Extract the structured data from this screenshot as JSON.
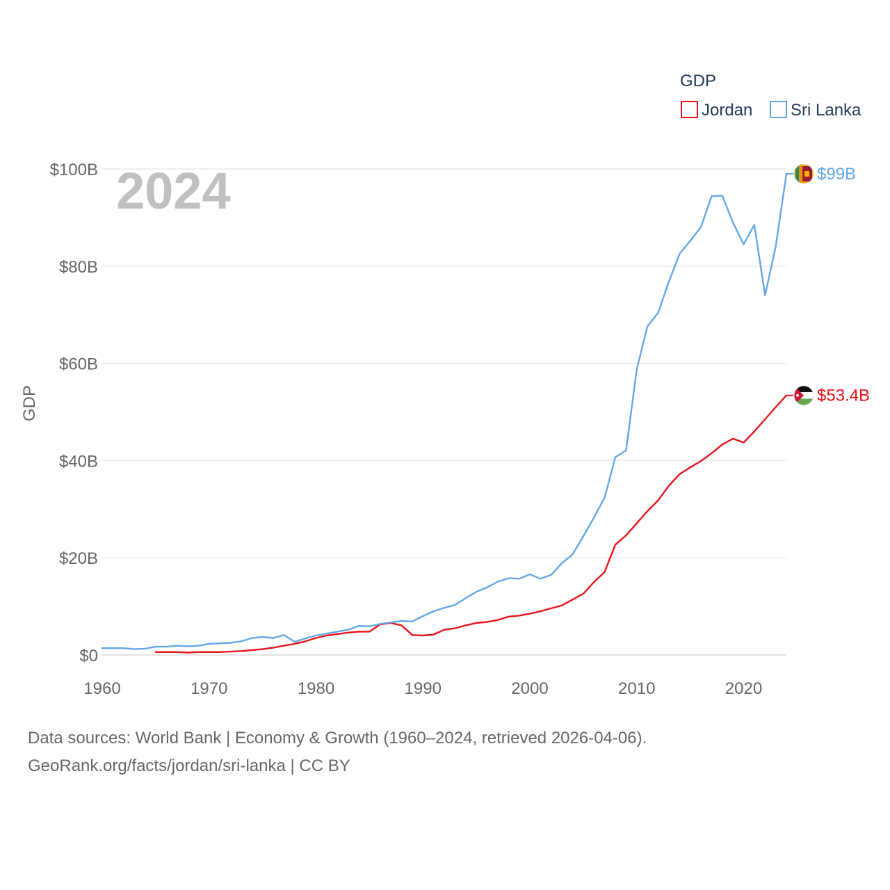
{
  "chart_data": {
    "type": "line",
    "ylabel": "GDP",
    "legend_title": "GDP",
    "legend_position": "top-right",
    "year_label": "2024",
    "x_ticks": [
      1960,
      1970,
      1980,
      1990,
      2000,
      2010,
      2020
    ],
    "y_ticks": [
      0,
      20,
      40,
      60,
      80,
      100
    ],
    "y_tick_labels": [
      "$0",
      "$20B",
      "$40B",
      "$60B",
      "$80B",
      "$100B"
    ],
    "xlim": [
      1960,
      2024
    ],
    "ylim": [
      0,
      100
    ],
    "y_unit": "billion USD",
    "series": [
      {
        "name": "Jordan",
        "color": "#e8131a",
        "end_label": "$53.4B",
        "x": [
          1965,
          1966,
          1967,
          1968,
          1969,
          1970,
          1971,
          1972,
          1973,
          1974,
          1975,
          1976,
          1977,
          1978,
          1979,
          1980,
          1981,
          1982,
          1983,
          1984,
          1985,
          1986,
          1987,
          1988,
          1989,
          1990,
          1991,
          1992,
          1993,
          1994,
          1995,
          1996,
          1997,
          1998,
          1999,
          2000,
          2001,
          2002,
          2003,
          2004,
          2005,
          2006,
          2007,
          2008,
          2009,
          2010,
          2011,
          2012,
          2013,
          2014,
          2015,
          2016,
          2017,
          2018,
          2019,
          2020,
          2021,
          2022,
          2023,
          2024
        ],
        "values": [
          0.6,
          0.6,
          0.6,
          0.5,
          0.6,
          0.6,
          0.6,
          0.7,
          0.8,
          1.0,
          1.2,
          1.5,
          1.9,
          2.3,
          2.8,
          3.5,
          4.0,
          4.3,
          4.6,
          4.8,
          4.8,
          6.3,
          6.6,
          6.1,
          4.1,
          4.0,
          4.2,
          5.2,
          5.5,
          6.1,
          6.6,
          6.8,
          7.2,
          7.9,
          8.1,
          8.5,
          9.0,
          9.6,
          10.2,
          11.4,
          12.6,
          15.0,
          17.1,
          22.7,
          24.6,
          27.1,
          29.6,
          31.8,
          34.8,
          37.2,
          38.6,
          39.9,
          41.5,
          43.3,
          44.5,
          43.7,
          46.0,
          48.5,
          51.0,
          53.4
        ]
      },
      {
        "name": "Sri Lanka",
        "color": "#63a7e6",
        "end_label": "$99B",
        "x": [
          1960,
          1961,
          1962,
          1963,
          1964,
          1965,
          1966,
          1967,
          1968,
          1969,
          1970,
          1971,
          1972,
          1973,
          1974,
          1975,
          1976,
          1977,
          1978,
          1979,
          1980,
          1981,
          1982,
          1983,
          1984,
          1985,
          1986,
          1987,
          1988,
          1989,
          1990,
          1991,
          1992,
          1993,
          1994,
          1995,
          1996,
          1997,
          1998,
          1999,
          2000,
          2001,
          2002,
          2003,
          2004,
          2005,
          2006,
          2007,
          2008,
          2009,
          2010,
          2011,
          2012,
          2013,
          2014,
          2015,
          2016,
          2017,
          2018,
          2019,
          2020,
          2021,
          2022,
          2023,
          2024
        ],
        "values": [
          1.4,
          1.4,
          1.4,
          1.2,
          1.3,
          1.7,
          1.7,
          1.9,
          1.8,
          1.9,
          2.3,
          2.4,
          2.5,
          2.8,
          3.5,
          3.7,
          3.5,
          4.1,
          2.7,
          3.4,
          4.0,
          4.4,
          4.8,
          5.2,
          6.0,
          5.9,
          6.4,
          6.7,
          7.0,
          6.9,
          8.0,
          9.0,
          9.7,
          10.3,
          11.7,
          13.0,
          13.9,
          15.1,
          15.8,
          15.7,
          16.6,
          15.7,
          16.5,
          18.9,
          20.7,
          24.4,
          28.3,
          32.4,
          40.7,
          42.1,
          58.8,
          67.6,
          70.4,
          76.8,
          82.5,
          85.2,
          88.0,
          94.4,
          94.5,
          89.0,
          84.5,
          88.5,
          74.0,
          84.0,
          99.0
        ]
      }
    ]
  },
  "footer": {
    "line1": "Data sources: World Bank | Economy & Growth (1960–2024, retrieved 2026-04-06).",
    "line2": "GeoRank.org/facts/jordan/sri-lanka | CC BY"
  }
}
